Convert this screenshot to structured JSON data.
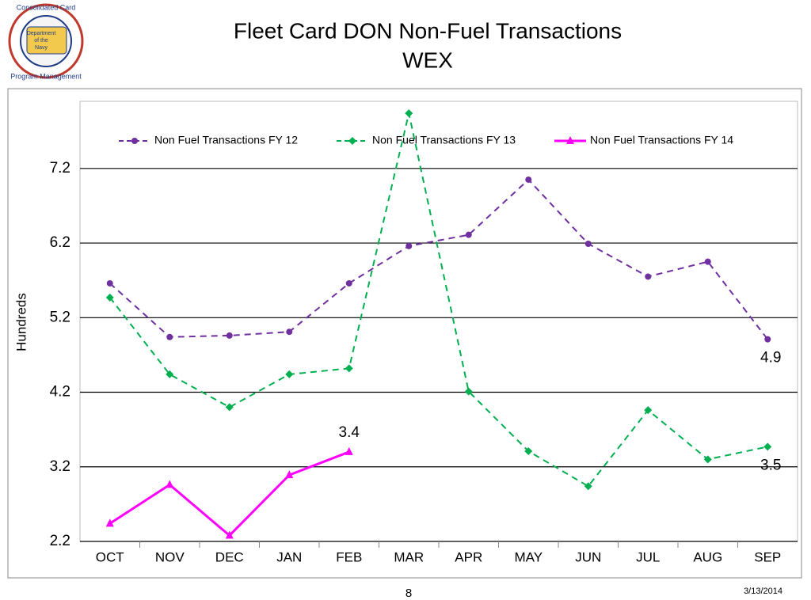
{
  "logo": {
    "top_text": "Consolidated Card",
    "bottom_text": "Program Management",
    "center_lines": [
      "Department",
      "of the",
      "Navy"
    ]
  },
  "chart_data": {
    "type": "line",
    "title": "Fleet Card DON Non-Fuel Transactions",
    "subtitle": "WEX",
    "y_label": "Hundreds",
    "categories": [
      "OCT",
      "NOV",
      "DEC",
      "JAN",
      "FEB",
      "MAR",
      "APR",
      "MAY",
      "JUN",
      "JUL",
      "AUG",
      "SEP"
    ],
    "series": [
      {
        "name": "Non Fuel Transactions FY 12",
        "color": "#7030a0",
        "dash": true,
        "marker": "circle",
        "values": [
          5.66,
          4.94,
          4.96,
          5.01,
          5.66,
          6.16,
          6.31,
          7.05,
          6.19,
          5.75,
          5.95,
          4.91
        ],
        "value_labels": [
          null,
          null,
          null,
          null,
          null,
          null,
          null,
          null,
          null,
          null,
          null,
          "4.9"
        ]
      },
      {
        "name": "Non Fuel Transactions FY 13",
        "color": "#00b050",
        "dash": true,
        "marker": "diamond",
        "values": [
          5.47,
          4.44,
          4.0,
          4.44,
          4.52,
          7.94,
          4.21,
          3.41,
          2.94,
          3.96,
          3.3,
          3.47
        ],
        "value_labels": [
          null,
          null,
          null,
          null,
          null,
          null,
          null,
          null,
          null,
          null,
          null,
          "3.5"
        ]
      },
      {
        "name": "Non Fuel Transactions FY 14",
        "color": "#ff00ff",
        "dash": false,
        "marker": "triangle",
        "values": [
          2.44,
          2.96,
          2.28,
          3.09,
          3.4,
          null,
          null,
          null,
          null,
          null,
          null,
          null
        ],
        "value_labels": [
          null,
          null,
          null,
          null,
          "3.4",
          null,
          null,
          null,
          null,
          null,
          null,
          null
        ]
      }
    ],
    "ylim": [
      2.2,
      8.1
    ],
    "yticks": [
      2.2,
      3.2,
      4.2,
      5.2,
      6.2,
      7.2
    ],
    "grid": true,
    "legend": "top"
  },
  "footer": {
    "page": "8",
    "date": "3/13/2014"
  }
}
